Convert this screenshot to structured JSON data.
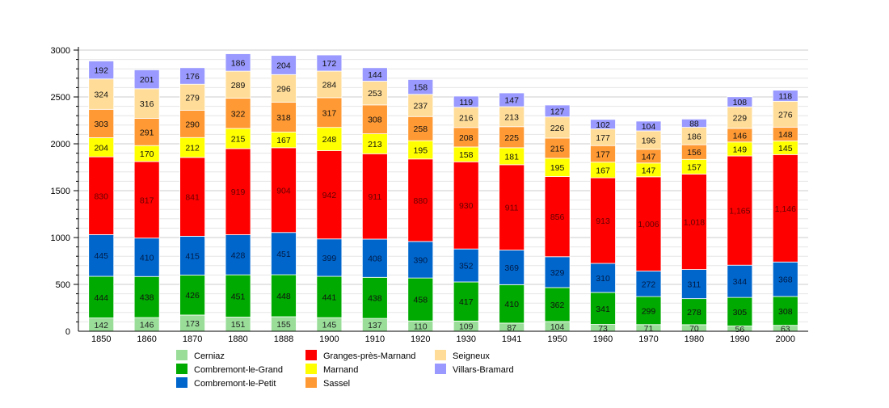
{
  "chart_data": {
    "type": "bar",
    "stacked": true,
    "title": "",
    "xlabel": "",
    "ylabel": "",
    "ylim": [
      0,
      3000
    ],
    "yticks": [
      0,
      500,
      1000,
      1500,
      2000,
      2500,
      3000
    ],
    "grid": true,
    "legend_position": "bottom",
    "categories": [
      "1850",
      "1860",
      "1870",
      "1880",
      "1888",
      "1900",
      "1910",
      "1920",
      "1930",
      "1941",
      "1950",
      "1960",
      "1970",
      "1980",
      "1990",
      "2000"
    ],
    "series": [
      {
        "name": "Cerniaz",
        "color": "#99dd99",
        "label_color": "#222222",
        "values": [
          142,
          146,
          173,
          151,
          155,
          145,
          137,
          110,
          109,
          87,
          104,
          73,
          71,
          70,
          56,
          63
        ]
      },
      {
        "name": "Combremont-le-Grand",
        "color": "#00aa00",
        "label_color": "#111111",
        "values": [
          444,
          438,
          426,
          451,
          448,
          441,
          438,
          458,
          417,
          410,
          362,
          341,
          299,
          278,
          305,
          308
        ]
      },
      {
        "name": "Combremont-le-Petit",
        "color": "#0066cc",
        "label_color": "#001a44",
        "values": [
          445,
          410,
          415,
          428,
          451,
          399,
          408,
          390,
          352,
          369,
          329,
          310,
          272,
          311,
          344,
          368
        ]
      },
      {
        "name": "Granges-près-Marnand",
        "color": "#ff0000",
        "label_color": "#660000",
        "values": [
          830,
          817,
          841,
          919,
          904,
          942,
          911,
          880,
          930,
          911,
          856,
          913,
          1006,
          1018,
          1165,
          1146
        ]
      },
      {
        "name": "Marnand",
        "color": "#ffff00",
        "label_color": "#111111",
        "values": [
          204,
          170,
          212,
          215,
          167,
          248,
          213,
          195,
          158,
          181,
          195,
          167,
          147,
          157,
          149,
          145
        ]
      },
      {
        "name": "Sassel",
        "color": "#ff9933",
        "label_color": "#111111",
        "values": [
          303,
          291,
          290,
          322,
          318,
          317,
          308,
          258,
          208,
          225,
          215,
          177,
          147,
          156,
          146,
          148
        ]
      },
      {
        "name": "Seigneux",
        "color": "#ffdd99",
        "label_color": "#111111",
        "values": [
          324,
          316,
          279,
          289,
          296,
          284,
          253,
          237,
          216,
          213,
          226,
          177,
          196,
          186,
          229,
          276
        ]
      },
      {
        "name": "Villars-Bramard",
        "color": "#9999ff",
        "label_color": "#111111",
        "values": [
          192,
          201,
          176,
          186,
          204,
          172,
          144,
          158,
          119,
          147,
          127,
          102,
          104,
          88,
          108,
          118
        ]
      }
    ]
  }
}
